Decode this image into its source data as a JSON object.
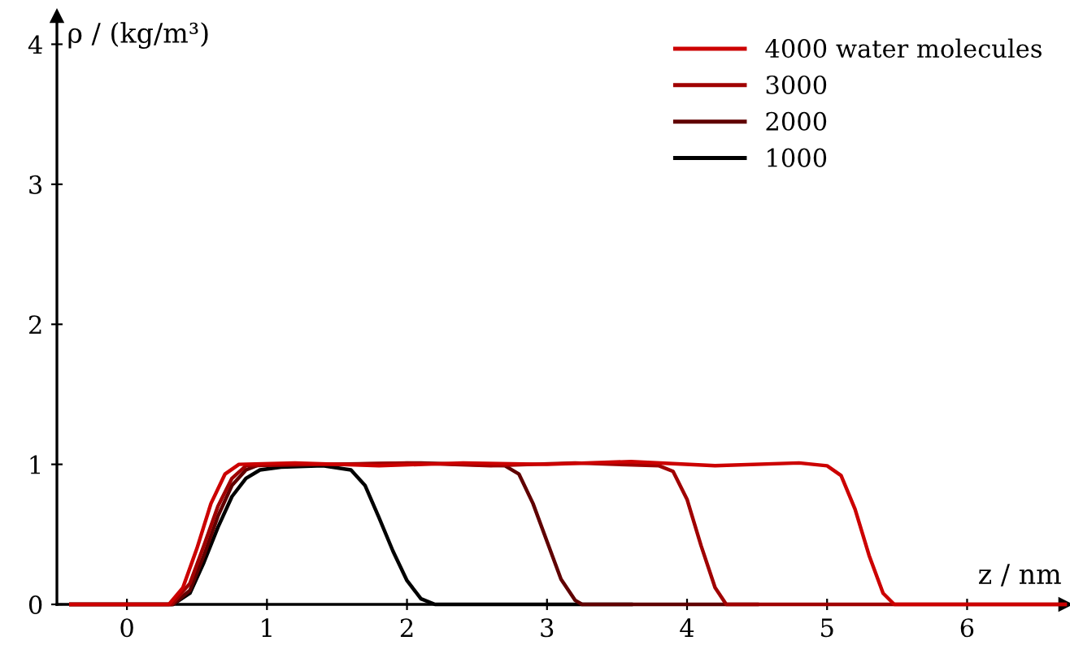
{
  "chart_data": {
    "type": "line",
    "xlabel": "z / nm",
    "ylabel": "ρ / (kg/m³)",
    "xlim": [
      -0.5,
      6.7
    ],
    "ylim": [
      0,
      4.2
    ],
    "xticks": [
      0,
      1,
      2,
      3,
      4,
      5,
      6
    ],
    "yticks": [
      0,
      1,
      2,
      3,
      4
    ],
    "grid": false,
    "legend": "top right",
    "marker": "none",
    "line_style": "solid",
    "series": [
      {
        "name": "4000 water molecules",
        "color": "#cc0000",
        "x": [
          -0.4,
          0.3,
          0.4,
          0.5,
          0.6,
          0.7,
          0.8,
          1.2,
          1.8,
          2.4,
          3.0,
          3.6,
          4.2,
          4.8,
          5.0,
          5.1,
          5.2,
          5.3,
          5.4,
          5.48,
          6.7
        ],
        "values": [
          0,
          0,
          0.12,
          0.4,
          0.72,
          0.93,
          1.0,
          1.01,
          0.99,
          1.01,
          1.0,
          1.02,
          0.99,
          1.01,
          0.99,
          0.92,
          0.68,
          0.35,
          0.08,
          0,
          0
        ]
      },
      {
        "name": "3000",
        "color": "#a00000",
        "x": [
          -0.4,
          0.32,
          0.45,
          0.55,
          0.65,
          0.75,
          0.85,
          1.4,
          2.0,
          2.6,
          3.2,
          3.8,
          3.9,
          4.0,
          4.1,
          4.2,
          4.28,
          6.7
        ],
        "values": [
          0,
          0,
          0.15,
          0.42,
          0.7,
          0.9,
          0.99,
          1.0,
          1.01,
          0.99,
          1.01,
          0.99,
          0.95,
          0.75,
          0.42,
          0.12,
          0,
          0
        ]
      },
      {
        "name": "2000",
        "color": "#600000",
        "x": [
          -0.4,
          0.33,
          0.45,
          0.55,
          0.65,
          0.75,
          0.85,
          0.95,
          1.5,
          2.1,
          2.7,
          2.8,
          2.9,
          3.0,
          3.1,
          3.2,
          3.25,
          4.5
        ],
        "values": [
          0,
          0,
          0.1,
          0.35,
          0.63,
          0.85,
          0.96,
          1.0,
          1.0,
          1.01,
          0.99,
          0.93,
          0.72,
          0.45,
          0.18,
          0.03,
          0,
          0
        ]
      },
      {
        "name": "1000",
        "color": "#000000",
        "x": [
          -0.4,
          0.33,
          0.45,
          0.55,
          0.65,
          0.75,
          0.85,
          0.95,
          1.1,
          1.4,
          1.6,
          1.7,
          1.8,
          1.9,
          2.0,
          2.1,
          2.2,
          3.6
        ],
        "values": [
          0,
          0,
          0.08,
          0.3,
          0.55,
          0.77,
          0.9,
          0.96,
          0.98,
          0.99,
          0.96,
          0.85,
          0.62,
          0.38,
          0.17,
          0.04,
          0,
          0
        ]
      }
    ]
  }
}
